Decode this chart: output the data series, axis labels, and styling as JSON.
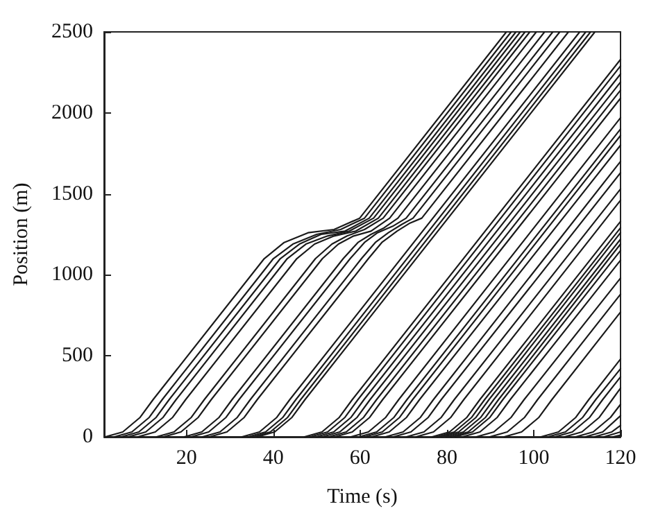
{
  "chart_data": {
    "type": "line",
    "xlabel": "Time (s)",
    "ylabel": "Position (m)",
    "xlim": [
      1,
      120
    ],
    "xticks": [
      20,
      40,
      60,
      80,
      100,
      120
    ],
    "ylim": [
      0,
      2500
    ],
    "yticks": [
      0,
      500,
      1000,
      1500,
      2000,
      2500
    ],
    "grid": false,
    "marker": "none",
    "line_style": "solid",
    "series": [
      {
        "color": "#1a1a1a",
        "x": [
          1.3,
          5.3,
          9.3,
          12.3,
          37.9,
          42.5,
          48,
          54,
          59.9,
          93.7
        ],
        "values": [
          0,
          30,
          120,
          230,
          1100,
          1200,
          1260,
          1280,
          1350,
          2500
        ]
      },
      {
        "color": "#1a1a1a",
        "x": [
          3.4,
          7.4,
          11.4,
          14.4,
          40.0,
          44.5,
          50,
          55.5,
          61.0,
          94.8
        ],
        "values": [
          0,
          30,
          120,
          230,
          1100,
          1190,
          1250,
          1280,
          1350,
          2500
        ]
      },
      {
        "color": "#1a1a1a",
        "x": [
          5,
          9,
          13,
          16,
          41.6,
          46,
          51,
          56.5,
          62.1,
          95.9
        ],
        "values": [
          0,
          30,
          120,
          230,
          1100,
          1190,
          1250,
          1270,
          1350,
          2500
        ]
      },
      {
        "color": "#1a1a1a",
        "x": [
          6.6,
          10.6,
          14.6,
          17.6,
          43.2,
          47.5,
          52.5,
          57.5,
          63.1,
          96.9
        ],
        "values": [
          0,
          30,
          120,
          230,
          1100,
          1190,
          1240,
          1270,
          1350,
          2500
        ]
      },
      {
        "color": "#1a1a1a",
        "x": [
          8.8,
          12.8,
          16.8,
          19.8,
          45.4,
          49.5,
          54,
          59,
          64.2,
          98.0
        ],
        "values": [
          0,
          30,
          120,
          230,
          1100,
          1190,
          1240,
          1270,
          1350,
          2500
        ]
      },
      {
        "color": "#1a1a1a",
        "x": [
          13.1,
          17.1,
          21.1,
          24.1,
          49.7,
          53.5,
          57,
          61,
          65.3,
          99.1
        ],
        "values": [
          0,
          30,
          120,
          230,
          1100,
          1190,
          1240,
          1280,
          1350,
          2500
        ]
      },
      {
        "color": "#1a1a1a",
        "x": [
          14.7,
          18.7,
          22.7,
          25.7,
          51.3,
          55,
          58.5,
          62.5,
          66.8,
          100.6
        ],
        "values": [
          0,
          30,
          120,
          230,
          1100,
          1190,
          1240,
          1270,
          1350,
          2500
        ]
      },
      {
        "color": "#1a1a1a",
        "x": [
          19.5,
          23.5,
          27.5,
          30.5,
          56.1,
          59.5,
          62.5,
          65.5,
          68.7,
          102.5
        ],
        "values": [
          0,
          30,
          120,
          230,
          1100,
          1200,
          1250,
          1290,
          1350,
          2500
        ]
      },
      {
        "color": "#1a1a1a",
        "x": [
          21.1,
          25.1,
          29.1,
          32.1,
          57.7,
          61,
          64,
          67.5,
          70.6,
          104.4
        ],
        "values": [
          0,
          30,
          120,
          230,
          1100,
          1200,
          1260,
          1300,
          1350,
          2500
        ]
      },
      {
        "color": "#1a1a1a",
        "x": [
          23.7,
          27.7,
          31.7,
          34.7,
          60.3,
          63.5,
          66.5,
          69.5,
          72.2,
          106.0
        ],
        "values": [
          0,
          30,
          120,
          230,
          1100,
          1200,
          1260,
          1310,
          1350,
          2500
        ]
      },
      {
        "color": "#1a1a1a",
        "x": [
          25.3,
          29.3,
          33.3,
          36.3,
          61.9,
          65,
          68.5,
          71.5,
          74.2,
          108.0
        ],
        "values": [
          0,
          30,
          120,
          230,
          1100,
          1200,
          1270,
          1320,
          1350,
          2500
        ]
      },
      {
        "color": "#1a1a1a",
        "x": [
          32.8,
          36.8,
          40.8,
          43.8,
          110.6
        ],
        "values": [
          0,
          30,
          120,
          230,
          2500
        ]
      },
      {
        "color": "#1a1a1a",
        "x": [
          34.2,
          38.2,
          42.2,
          45.2,
          112.0
        ],
        "values": [
          0,
          30,
          120,
          230,
          2500
        ]
      },
      {
        "color": "#1a1a1a",
        "x": [
          35.3,
          39.3,
          43.3,
          46.3,
          113.1
        ],
        "values": [
          0,
          30,
          120,
          230,
          2500
        ]
      },
      {
        "color": "#1a1a1a",
        "x": [
          36.3,
          40.3,
          44.3,
          47.3,
          114.1
        ],
        "values": [
          0,
          30,
          120,
          230,
          2500
        ]
      },
      {
        "color": "#1a1a1a",
        "x": [
          47.2,
          51.2,
          55.2,
          58.2,
          120
        ],
        "values": [
          0,
          30,
          120,
          230,
          2330
        ]
      },
      {
        "color": "#1a1a1a",
        "x": [
          48.5,
          52.5,
          56.5,
          59.5,
          120
        ],
        "values": [
          0,
          30,
          120,
          230,
          2290
        ]
      },
      {
        "color": "#1a1a1a",
        "x": [
          49.9,
          53.9,
          57.9,
          60.9,
          120
        ],
        "values": [
          0,
          30,
          120,
          230,
          2240
        ]
      },
      {
        "color": "#1a1a1a",
        "x": [
          51.3,
          55.3,
          59.3,
          62.3,
          120
        ],
        "values": [
          0,
          30,
          120,
          230,
          2190
        ]
      },
      {
        "color": "#1a1a1a",
        "x": [
          52.8,
          56.8,
          60.8,
          63.8,
          120
        ],
        "values": [
          0,
          30,
          120,
          230,
          2140
        ]
      },
      {
        "color": "#1a1a1a",
        "x": [
          54.2,
          58.2,
          62.2,
          65.2,
          120
        ],
        "values": [
          0,
          30,
          120,
          230,
          2090
        ]
      },
      {
        "color": "#1a1a1a",
        "x": [
          57.9,
          61.9,
          65.9,
          68.9,
          120
        ],
        "values": [
          0,
          30,
          120,
          230,
          1970
        ]
      },
      {
        "color": "#1a1a1a",
        "x": [
          59.8,
          63.8,
          67.8,
          70.8,
          120
        ],
        "values": [
          0,
          30,
          120,
          230,
          1900
        ]
      },
      {
        "color": "#1a1a1a",
        "x": [
          61.1,
          65.1,
          69.1,
          72.1,
          120
        ],
        "values": [
          0,
          30,
          120,
          230,
          1860
        ]
      },
      {
        "color": "#1a1a1a",
        "x": [
          62.7,
          66.7,
          70.7,
          73.7,
          120
        ],
        "values": [
          0,
          30,
          120,
          230,
          1800
        ]
      },
      {
        "color": "#1a1a1a",
        "x": [
          65.9,
          69.9,
          73.9,
          76.9,
          120
        ],
        "values": [
          0,
          30,
          120,
          230,
          1700
        ]
      },
      {
        "color": "#1a1a1a",
        "x": [
          67.7,
          71.7,
          75.7,
          78.7,
          120
        ],
        "values": [
          0,
          30,
          120,
          230,
          1630
        ]
      },
      {
        "color": "#1a1a1a",
        "x": [
          70.7,
          74.7,
          78.7,
          81.7,
          120
        ],
        "values": [
          0,
          30,
          120,
          230,
          1530
        ]
      },
      {
        "color": "#1a1a1a",
        "x": [
          72.9,
          76.9,
          80.9,
          83.9,
          120
        ],
        "values": [
          0,
          30,
          120,
          230,
          1460
        ]
      },
      {
        "color": "#1a1a1a",
        "x": [
          76.6,
          80.6,
          84.6,
          87.6,
          120
        ],
        "values": [
          0,
          30,
          120,
          230,
          1330
        ]
      },
      {
        "color": "#1a1a1a",
        "x": [
          77.7,
          81.7,
          85.7,
          88.7,
          120
        ],
        "values": [
          0,
          30,
          120,
          230,
          1290
        ]
      },
      {
        "color": "#1a1a1a",
        "x": [
          78.7,
          82.7,
          86.7,
          89.7,
          120
        ],
        "values": [
          0,
          30,
          120,
          230,
          1260
        ]
      },
      {
        "color": "#1a1a1a",
        "x": [
          79.8,
          83.8,
          87.8,
          90.8,
          120
        ],
        "values": [
          0,
          30,
          120,
          230,
          1220
        ]
      },
      {
        "color": "#1a1a1a",
        "x": [
          80.9,
          84.9,
          88.9,
          91.9,
          120
        ],
        "values": [
          0,
          30,
          120,
          230,
          1190
        ]
      },
      {
        "color": "#1a1a1a",
        "x": [
          81.9,
          85.9,
          89.9,
          92.9,
          120
        ],
        "values": [
          0,
          30,
          120,
          230,
          1150
        ]
      },
      {
        "color": "#1a1a1a",
        "x": [
          83.6,
          87.6,
          91.6,
          94.6,
          120
        ],
        "values": [
          0,
          30,
          120,
          230,
          1090
        ]
      },
      {
        "color": "#1a1a1a",
        "x": [
          86.8,
          90.8,
          94.8,
          97.8,
          120
        ],
        "values": [
          0,
          30,
          120,
          230,
          980
        ]
      },
      {
        "color": "#1a1a1a",
        "x": [
          89.9,
          93.9,
          97.9,
          100.9,
          120
        ],
        "values": [
          0,
          30,
          120,
          230,
          880
        ]
      },
      {
        "color": "#1a1a1a",
        "x": [
          93.2,
          97.2,
          101.2,
          104.2,
          120
        ],
        "values": [
          0,
          30,
          120,
          230,
          770
        ]
      },
      {
        "color": "#1a1a1a",
        "x": [
          101.7,
          105.7,
          109.7,
          112.7,
          120
        ],
        "values": [
          0,
          30,
          120,
          230,
          480
        ]
      },
      {
        "color": "#1a1a1a",
        "x": [
          103.3,
          107.3,
          111.3,
          114.3,
          120
        ],
        "values": [
          0,
          30,
          120,
          230,
          420
        ]
      },
      {
        "color": "#1a1a1a",
        "x": [
          104.9,
          108.9,
          112.9,
          115.9,
          120
        ],
        "values": [
          0,
          30,
          120,
          230,
          370
        ]
      },
      {
        "color": "#1a1a1a",
        "x": [
          107.1,
          111.1,
          115.1,
          118.1,
          120
        ],
        "values": [
          0,
          30,
          120,
          230,
          300
        ]
      },
      {
        "color": "#1a1a1a",
        "x": [
          109.7,
          113.7,
          117.7,
          120
        ],
        "values": [
          0,
          30,
          120,
          200
        ]
      },
      {
        "color": "#1a1a1a",
        "x": [
          111.9,
          115.9,
          120
        ],
        "values": [
          0,
          30,
          130
        ]
      },
      {
        "color": "#1a1a1a",
        "x": [
          114,
          118,
          120
        ],
        "values": [
          0,
          30,
          70
        ]
      },
      {
        "color": "#1a1a1a",
        "x": [
          116.2,
          120
        ],
        "values": [
          0,
          30
        ]
      },
      {
        "color": "#1a1a1a",
        "x": [
          118.3,
          120
        ],
        "values": [
          0,
          10
        ]
      }
    ]
  }
}
